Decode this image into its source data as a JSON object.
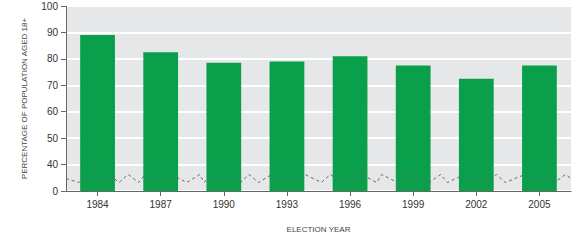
{
  "chart_data": {
    "type": "bar",
    "categories": [
      "1984",
      "1987",
      "1990",
      "1993",
      "1996",
      "1999",
      "2002",
      "2005"
    ],
    "values": [
      89,
      82.5,
      78.5,
      79,
      81,
      77.5,
      72.5,
      77.5
    ],
    "color": "#0a9f4b",
    "x_label": "ELECTION YEAR",
    "y_label": "PERCENTAGE OF POPULATION AGED 18+",
    "ylim": [
      0,
      100
    ],
    "yticks": [
      0,
      40,
      50,
      60,
      70,
      80,
      90,
      100
    ],
    "grid": true
  }
}
